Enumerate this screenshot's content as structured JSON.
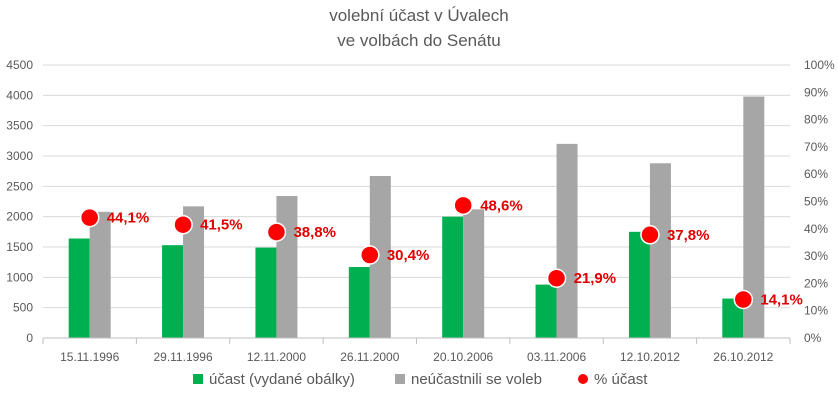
{
  "chart_data": {
    "type": "bar",
    "title": "volební účast v Úvalech",
    "subtitle": "ve volbách do Senátu",
    "categories": [
      "15.11.1996",
      "29.11.1996",
      "12.11.2000",
      "26.11.2000",
      "20.10.2006",
      "03.11.2006",
      "12.10.2012",
      "26.10.2012"
    ],
    "series": [
      {
        "name": "účast (vydané obálky)",
        "type": "bar",
        "axis": "left",
        "color": "#00b050",
        "values": [
          1640,
          1530,
          1490,
          1170,
          2000,
          880,
          1750,
          650
        ]
      },
      {
        "name": "neúčastnili se voleb",
        "type": "bar",
        "axis": "left",
        "color": "#a6a6a6",
        "values": [
          2080,
          2170,
          2340,
          2670,
          2120,
          3200,
          2880,
          3980
        ]
      },
      {
        "name": "% účast",
        "type": "scatter",
        "axis": "right",
        "color": "#ff0000",
        "values": [
          44.1,
          41.5,
          38.8,
          30.4,
          48.6,
          21.9,
          37.8,
          14.1
        ],
        "labels": [
          "44,1%",
          "41,5%",
          "38,8%",
          "30,4%",
          "48,6%",
          "21,9%",
          "37,8%",
          "14,1%"
        ]
      }
    ],
    "ylim": [
      0,
      4500
    ],
    "y_ticks": [
      "0",
      "500",
      "1000",
      "1500",
      "2000",
      "2500",
      "3000",
      "3500",
      "4000",
      "4500"
    ],
    "y2lim": [
      0,
      100
    ],
    "y2_ticks": [
      "0%",
      "10%",
      "20%",
      "30%",
      "40%",
      "50%",
      "60%",
      "70%",
      "80%",
      "90%",
      "100%"
    ],
    "grid": true,
    "legend": "bottom"
  }
}
